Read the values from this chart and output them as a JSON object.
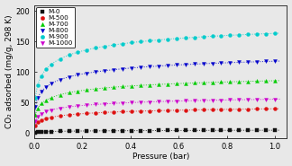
{
  "xlabel": "Pressure (bar)",
  "ylabel": "CO₂ adsorbed (mg/g, 298 K)",
  "xlim": [
    0.0,
    1.05
  ],
  "ylim": [
    -8,
    210
  ],
  "yticks": [
    0,
    50,
    100,
    150,
    200
  ],
  "xticks": [
    0.0,
    0.2,
    0.4,
    0.6,
    0.8,
    1.0
  ],
  "series": [
    {
      "label": "M-0",
      "color": "#111111",
      "marker": "s",
      "qmax": 7.0,
      "K": 5.0,
      "n": 0.45
    },
    {
      "label": "M-500",
      "color": "#dd1111",
      "marker": "o",
      "qmax": 54.0,
      "K": 12.0,
      "n": 0.42
    },
    {
      "label": "M-700",
      "color": "#00cc00",
      "marker": "^",
      "qmax": 115.0,
      "K": 15.0,
      "n": 0.4
    },
    {
      "label": "M-800",
      "color": "#0000cc",
      "marker": "v",
      "qmax": 155.0,
      "K": 18.0,
      "n": 0.4
    },
    {
      "label": "M-900",
      "color": "#00cccc",
      "marker": "o",
      "qmax": 210.0,
      "K": 20.0,
      "n": 0.42
    },
    {
      "label": "M-1000",
      "color": "#cc00cc",
      "marker": "v",
      "qmax": 76.0,
      "K": 14.0,
      "n": 0.38
    }
  ],
  "bg_color": "#e8e8e8",
  "legend_fontsize": 5.2,
  "axis_fontsize": 6.5,
  "tick_fontsize": 6.0,
  "marker_size": 8,
  "line_width": 0.7
}
